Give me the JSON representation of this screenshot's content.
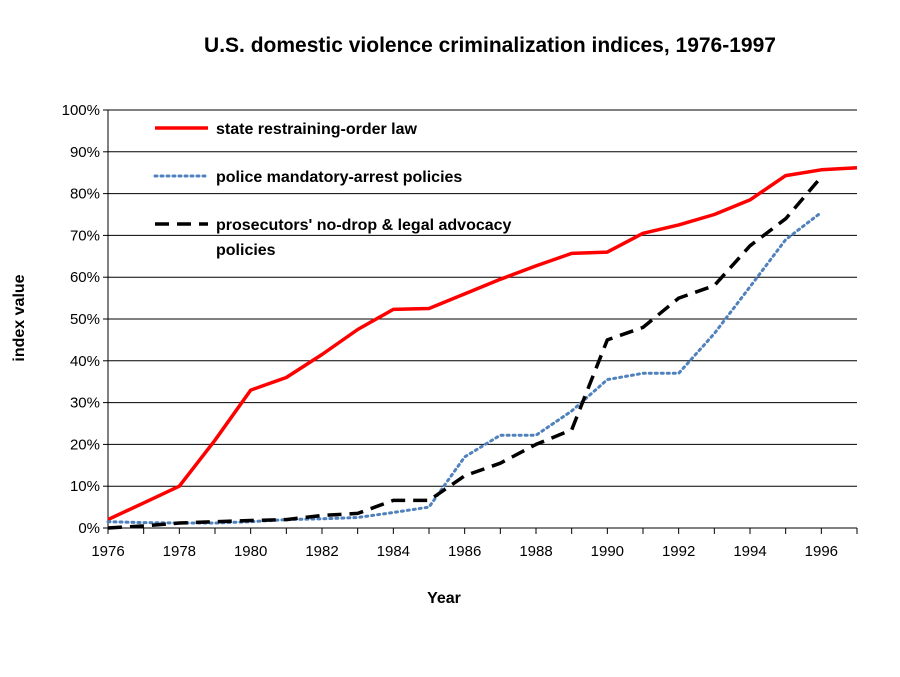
{
  "chart_data": {
    "type": "line",
    "title": "U.S. domestic violence criminalization indices, 1976-1997",
    "xlabel": "Year",
    "ylabel": "index value",
    "xlim": [
      1976,
      1997
    ],
    "ylim": [
      0,
      1
    ],
    "x_ticks": [
      1976,
      1978,
      1980,
      1982,
      1984,
      1986,
      1988,
      1990,
      1992,
      1994,
      1996
    ],
    "x_tick_labels": [
      "1976",
      "1978",
      "1980",
      "1982",
      "1984",
      "1986",
      "1988",
      "1990",
      "1992",
      "1994",
      "1996"
    ],
    "y_ticks": [
      0,
      0.1,
      0.2,
      0.3,
      0.4,
      0.5,
      0.6,
      0.7,
      0.8,
      0.9,
      1.0
    ],
    "y_tick_labels": [
      "0%",
      "10%",
      "20%",
      "30%",
      "40%",
      "50%",
      "60%",
      "70%",
      "80%",
      "90%",
      "100%"
    ],
    "grid": "horizontal",
    "legend_position": "top-left",
    "series": [
      {
        "name": "state restraining-order law",
        "color": "#ff0000",
        "style": "solid",
        "x": [
          1976,
          1977,
          1978,
          1979,
          1980,
          1981,
          1982,
          1983,
          1984,
          1985,
          1986,
          1987,
          1988,
          1989,
          1990,
          1991,
          1992,
          1993,
          1994,
          1995,
          1996,
          1997
        ],
        "values": [
          0.02,
          0.06,
          0.1,
          0.21,
          0.33,
          0.36,
          0.415,
          0.475,
          0.523,
          0.525,
          0.56,
          0.595,
          0.627,
          0.657,
          0.66,
          0.705,
          0.725,
          0.75,
          0.785,
          0.843,
          0.857,
          0.862
        ]
      },
      {
        "name": "police mandatory-arrest policies",
        "color": "#4f81bd",
        "style": "dotted",
        "x": [
          1976,
          1977,
          1978,
          1979,
          1980,
          1981,
          1982,
          1983,
          1984,
          1985,
          1986,
          1987,
          1988,
          1989,
          1990,
          1991,
          1992,
          1993,
          1994,
          1995,
          1996
        ],
        "values": [
          0.015,
          0.013,
          0.012,
          0.012,
          0.015,
          0.02,
          0.022,
          0.025,
          0.037,
          0.05,
          0.17,
          0.222,
          0.222,
          0.28,
          0.355,
          0.37,
          0.37,
          0.465,
          0.577,
          0.69,
          0.755
        ]
      },
      {
        "name": "prosecutors' no-drop & legal advocacy policies",
        "color": "#000000",
        "style": "dashed",
        "x": [
          1976,
          1977,
          1978,
          1979,
          1980,
          1981,
          1982,
          1983,
          1984,
          1985,
          1986,
          1987,
          1988,
          1989,
          1990,
          1991,
          1992,
          1993,
          1994,
          1995,
          1996
        ],
        "values": [
          0.0,
          0.005,
          0.012,
          0.015,
          0.018,
          0.02,
          0.03,
          0.035,
          0.066,
          0.066,
          0.125,
          0.155,
          0.2,
          0.235,
          0.45,
          0.48,
          0.55,
          0.58,
          0.675,
          0.74,
          0.84
        ]
      }
    ]
  }
}
